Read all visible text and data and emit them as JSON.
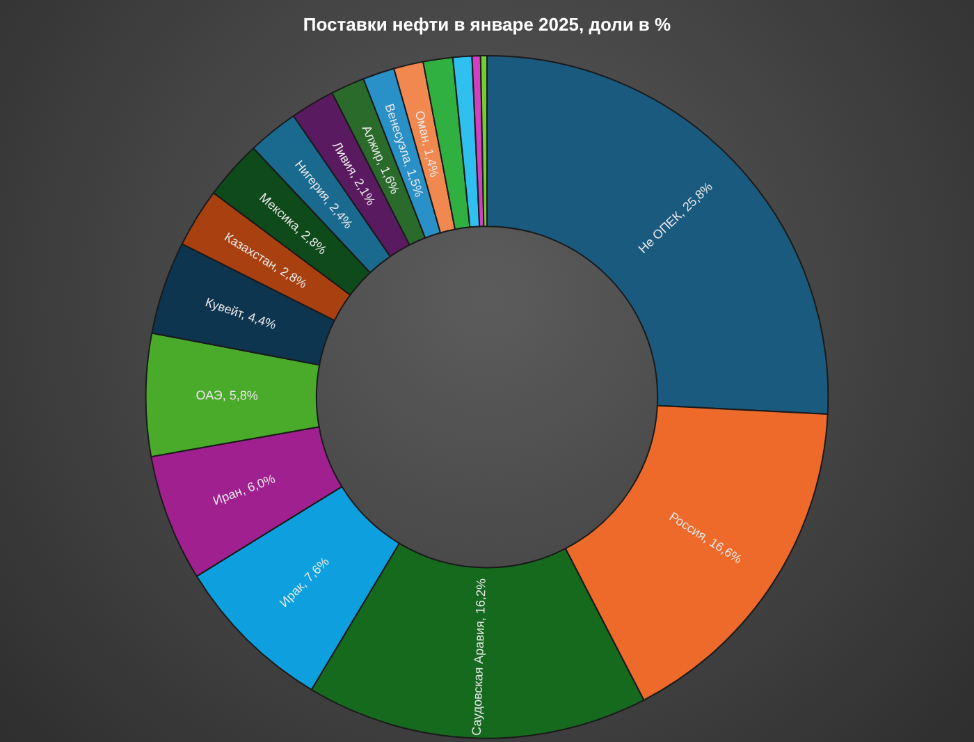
{
  "chart_data": {
    "type": "donut",
    "title": "Поставки нефти в январе 2025, доли в %",
    "categories": [
      "Не ОПЕК",
      "Россия",
      "Саудовская Аравия",
      "Ирак",
      "Иран",
      "ОАЭ",
      "Кувейт",
      "Казахстан",
      "Мексика",
      "Нигерия",
      "Ливия",
      "Алжир",
      "Венесуэла",
      "Оман",
      null,
      null,
      null,
      null
    ],
    "values": [
      25.8,
      16.6,
      16.2,
      7.6,
      6.0,
      5.8,
      4.4,
      2.8,
      2.8,
      2.4,
      2.1,
      1.6,
      1.5,
      1.4,
      1.4,
      0.9,
      0.4,
      0.3
    ],
    "value_labels": [
      "25,8%",
      "16,6%",
      "16,2%",
      "7,6%",
      "6,0%",
      "5,8%",
      "4,4%",
      "2,8%",
      "2,8%",
      "2,4%",
      "2,1%",
      "1,6%",
      "1,5%",
      "1,4%",
      null,
      null,
      null,
      null
    ],
    "colors": [
      "#1a5a7e",
      "#ee6a2a",
      "#156a1e",
      "#0ea0de",
      "#a0208f",
      "#4aaa2a",
      "#0d3550",
      "#a84010",
      "#0e4a1a",
      "#1a6a90",
      "#5a1a60",
      "#2a6a2a",
      "#2a90c8",
      "#f08850",
      "#30b040",
      "#30c0f0",
      "#d040c0",
      "#70d030"
    ]
  }
}
